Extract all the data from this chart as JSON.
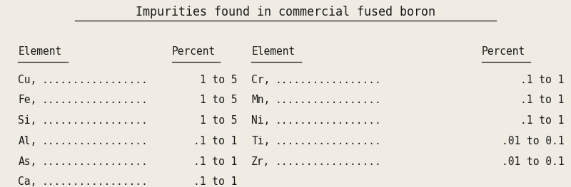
{
  "title": "Impurities found in commercial fused boron",
  "background_color": "#f0ece4",
  "text_color": "#1a1a1a",
  "col1_header_element": "Element",
  "col1_header_percent": "Percent",
  "col2_header_element": "Element",
  "col2_header_percent": "Percent",
  "left_elements": [
    "Cu",
    "Fe",
    "Si",
    "Al",
    "As",
    "Ca"
  ],
  "left_percents": [
    "1 to 5",
    "1 to 5",
    "1 to 5",
    ".1 to 1",
    ".1 to 1",
    ".1 to 1"
  ],
  "right_elements": [
    "Cr",
    "Mn",
    "Ni",
    "Ti",
    "Zr"
  ],
  "right_percents": [
    ".1 to 1",
    ".1 to 1",
    ".1 to 1",
    ".01 to 0.1",
    ".01 to 0.1"
  ],
  "dots": ".................",
  "font_family": "monospace",
  "title_fontsize": 12,
  "header_fontsize": 10.5,
  "body_fontsize": 10.5,
  "fig_width": 8.0,
  "fig_height": 2.63
}
